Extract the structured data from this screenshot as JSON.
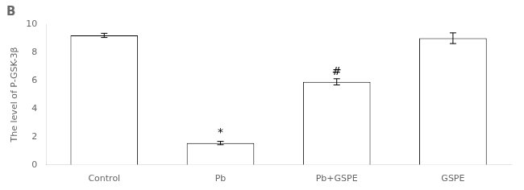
{
  "chart_data": {
    "type": "bar",
    "title": "B",
    "categories": [
      "Control",
      "Pb",
      "Pb+GSPE",
      "GSPE"
    ],
    "values": [
      9.2,
      1.55,
      5.9,
      9.0
    ],
    "errors": [
      0.15,
      0.12,
      0.22,
      0.38
    ],
    "ylabel": "The level of P-GSK-3β",
    "ylim": [
      0,
      10
    ],
    "yticks": [
      0,
      2,
      4,
      6,
      8,
      10
    ],
    "annotations": [
      {
        "category": "Pb",
        "y": 1.85,
        "text": "*"
      },
      {
        "category": "Pb+GSPE",
        "y": 6.22,
        "text": "#"
      }
    ],
    "colors": [
      "white",
      "white",
      "white",
      "white"
    ],
    "grid": false
  }
}
